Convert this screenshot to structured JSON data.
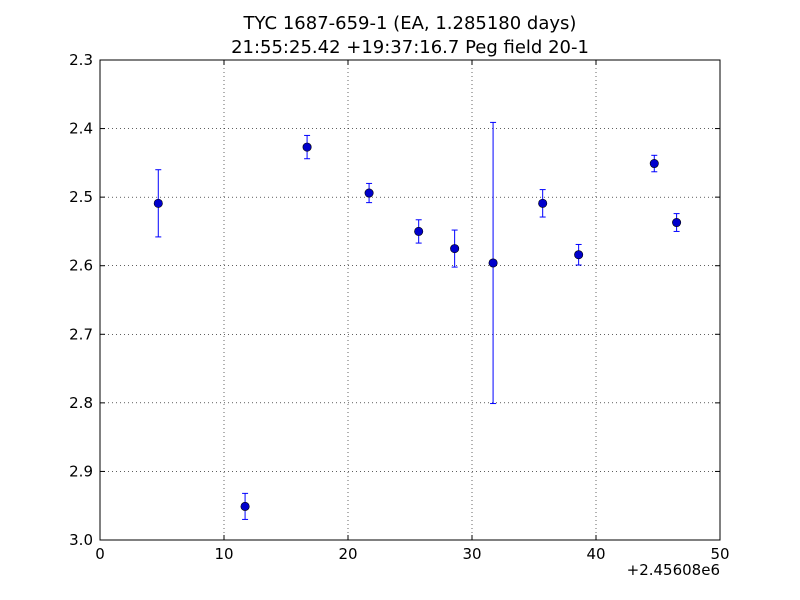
{
  "chart_data": {
    "type": "scatter",
    "title_line1": "TYC 1687-659-1 (EA, 1.285180 days)",
    "title_line2": "21:55:25.42 +19:37:16.7 Peg field 20-1",
    "xlabel": "",
    "ylabel": "",
    "x_offset_label": "+2.45608e6",
    "xlim": [
      0,
      50
    ],
    "ylim": [
      3.0,
      2.3
    ],
    "y_inverted": true,
    "x_ticks": [
      0,
      10,
      20,
      30,
      40,
      50
    ],
    "x_tick_labels": [
      "0",
      "10",
      "20",
      "30",
      "40",
      "50"
    ],
    "y_ticks": [
      2.3,
      2.4,
      2.5,
      2.6,
      2.7,
      2.8,
      2.9,
      3.0
    ],
    "y_tick_labels": [
      "2.3",
      "2.4",
      "2.5",
      "2.6",
      "2.7",
      "2.8",
      "2.9",
      "3.0"
    ],
    "grid": true,
    "marker_color": "#0000cc",
    "errorbar_color": "#0000ff",
    "points": [
      {
        "x": 4.7,
        "y": 2.509,
        "err": 0.049
      },
      {
        "x": 11.7,
        "y": 2.951,
        "err": 0.019
      },
      {
        "x": 16.7,
        "y": 2.427,
        "err": 0.017
      },
      {
        "x": 21.7,
        "y": 2.494,
        "err": 0.014
      },
      {
        "x": 25.7,
        "y": 2.55,
        "err": 0.017
      },
      {
        "x": 28.6,
        "y": 2.575,
        "err": 0.027
      },
      {
        "x": 31.7,
        "y": 2.596,
        "err": 0.205
      },
      {
        "x": 35.7,
        "y": 2.509,
        "err": 0.02
      },
      {
        "x": 38.6,
        "y": 2.584,
        "err": 0.015
      },
      {
        "x": 44.7,
        "y": 2.451,
        "err": 0.012
      },
      {
        "x": 46.5,
        "y": 2.537,
        "err": 0.013
      }
    ]
  }
}
